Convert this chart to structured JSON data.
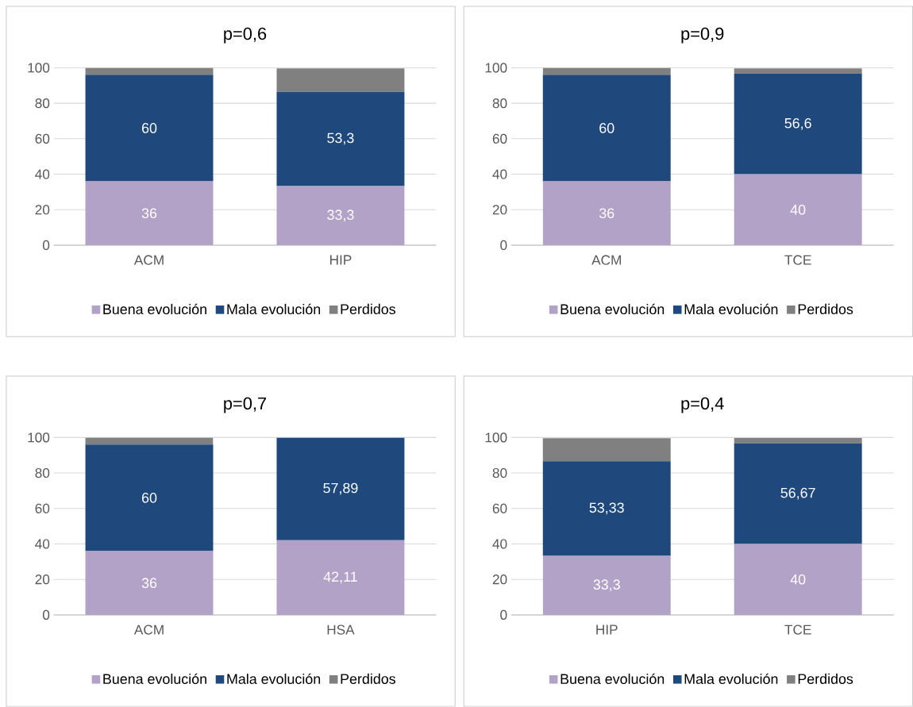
{
  "chart_data": [
    {
      "type": "bar",
      "stacked": true,
      "title": "p=0,6",
      "categories": [
        "ACM",
        "HIP"
      ],
      "ylim": [
        0,
        100
      ],
      "yticks": [
        0,
        20,
        40,
        60,
        80,
        100
      ],
      "grid": "y",
      "legend": "bottom",
      "series": [
        {
          "name": "Buena evolución",
          "color": "#b3a2c7",
          "values": [
            36,
            33.3
          ],
          "value_labels": [
            "36",
            "33,3"
          ]
        },
        {
          "name": "Mala evolución",
          "color": "#1f497d",
          "values": [
            60,
            53.3
          ],
          "value_labels": [
            "60",
            "53,3"
          ]
        },
        {
          "name": "Perdidos",
          "color": "#808080",
          "values": [
            4,
            13
          ]
        }
      ]
    },
    {
      "type": "bar",
      "stacked": true,
      "title": "p=0,9",
      "categories": [
        "ACM",
        "TCE"
      ],
      "ylim": [
        0,
        100
      ],
      "yticks": [
        0,
        20,
        40,
        60,
        80,
        100
      ],
      "grid": "y",
      "legend": "bottom",
      "series": [
        {
          "name": "Buena evolución",
          "color": "#b3a2c7",
          "values": [
            36,
            40
          ],
          "value_labels": [
            "36",
            "40"
          ]
        },
        {
          "name": "Mala evolución",
          "color": "#1f497d",
          "values": [
            60,
            56.6
          ],
          "value_labels": [
            "60",
            "56,6"
          ]
        },
        {
          "name": "Perdidos",
          "color": "#808080",
          "values": [
            4,
            3
          ]
        }
      ]
    },
    {
      "type": "bar",
      "stacked": true,
      "title": "p=0,7",
      "categories": [
        "ACM",
        "HSA"
      ],
      "ylim": [
        0,
        100
      ],
      "yticks": [
        0,
        20,
        40,
        60,
        80,
        100
      ],
      "grid": "y",
      "legend": "bottom",
      "series": [
        {
          "name": "Buena evolución",
          "color": "#b3a2c7",
          "values": [
            36,
            42.11
          ],
          "value_labels": [
            "36",
            "42,11"
          ]
        },
        {
          "name": "Mala evolución",
          "color": "#1f497d",
          "values": [
            60,
            57.89
          ],
          "value_labels": [
            "60",
            "57,89"
          ]
        },
        {
          "name": "Perdidos",
          "color": "#808080",
          "values": [
            4,
            0
          ]
        }
      ]
    },
    {
      "type": "bar",
      "stacked": true,
      "title": "p=0,4",
      "categories": [
        "HIP",
        "TCE"
      ],
      "ylim": [
        0,
        100
      ],
      "yticks": [
        0,
        20,
        40,
        60,
        80,
        100
      ],
      "grid": "y",
      "legend": "bottom",
      "series": [
        {
          "name": "Buena evolución",
          "color": "#b3a2c7",
          "values": [
            33.3,
            40
          ],
          "value_labels": [
            "33,3",
            "40"
          ]
        },
        {
          "name": "Mala evolución",
          "color": "#1f497d",
          "values": [
            53.33,
            56.67
          ],
          "value_labels": [
            "53,33",
            "56,67"
          ]
        },
        {
          "name": "Perdidos",
          "color": "#808080",
          "values": [
            13,
            3
          ]
        }
      ]
    }
  ]
}
